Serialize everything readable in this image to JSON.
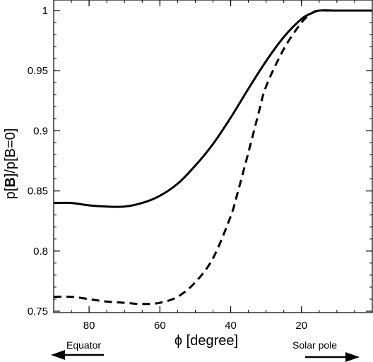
{
  "chart_data": {
    "type": "line",
    "title": "",
    "xlabel": "ϕ [degree]",
    "ylabel_parts": [
      "p[",
      "B",
      "]/p[B=0]"
    ],
    "xlim": [
      90,
      0
    ],
    "ylim": [
      0.75,
      1.0
    ],
    "x_reversed": true,
    "xticks": [
      80,
      60,
      40,
      20
    ],
    "yticks": [
      0.75,
      0.8,
      0.85,
      0.9,
      0.95,
      1
    ],
    "ytick_labels": [
      "0.75",
      "0.8",
      "0.85",
      "0.9",
      "0.95",
      "1"
    ],
    "grid": false,
    "legend": null,
    "series": [
      {
        "style": "solid",
        "color": "#000000",
        "x": [
          90,
          85,
          80,
          75,
          70,
          65,
          60,
          55,
          50,
          45,
          40,
          35,
          30,
          25,
          20,
          17,
          15,
          10,
          5,
          0
        ],
        "y": [
          0.84,
          0.84,
          0.838,
          0.837,
          0.837,
          0.84,
          0.846,
          0.856,
          0.871,
          0.889,
          0.911,
          0.935,
          0.958,
          0.978,
          0.993,
          0.998,
          1.0,
          1.0,
          1.0,
          1.0
        ]
      },
      {
        "style": "dashed",
        "color": "#000000",
        "x": [
          90,
          85,
          80,
          75,
          70,
          65,
          60,
          55,
          50,
          45,
          40,
          38,
          35,
          32,
          30,
          25,
          20,
          17,
          15,
          10,
          5,
          0
        ],
        "y": [
          0.762,
          0.762,
          0.76,
          0.758,
          0.757,
          0.756,
          0.757,
          0.762,
          0.774,
          0.794,
          0.829,
          0.849,
          0.882,
          0.916,
          0.937,
          0.968,
          0.99,
          0.998,
          1.0,
          1.0,
          1.0,
          1.0
        ]
      }
    ]
  },
  "annotations": {
    "left": "Equator",
    "right": "Solar pole"
  }
}
